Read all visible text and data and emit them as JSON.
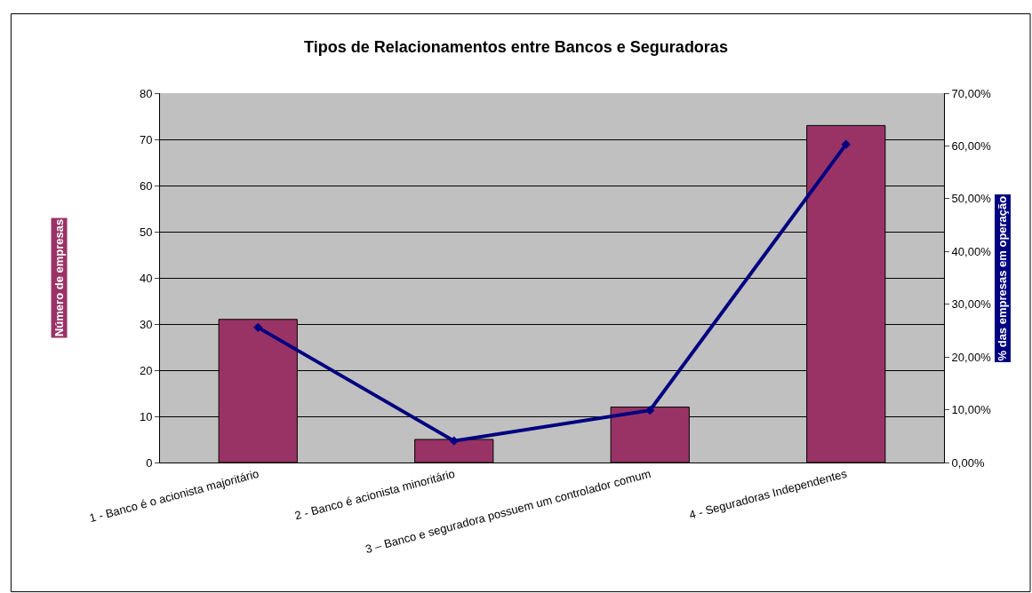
{
  "chart_data": {
    "type": "bar",
    "title": "Tipos de Relacionamentos entre Bancos e Seguradoras",
    "xlabel": null,
    "ylabel": "Número de empresas",
    "y2label": "% das empresas em operação",
    "categories": [
      "1 - Banco é o acionista majoritário",
      "2 - Banco é acionista minoritário",
      "3 – Banco e seguradora possuem um controlador comum",
      "4 - Seguradoras Independentes"
    ],
    "series": [
      {
        "color": "#993366",
        "values": [
          31,
          5,
          12,
          73
        ]
      },
      {
        "type": "line",
        "axis": "y2",
        "color": "#000080",
        "marker": "diamond",
        "values": [
          25.6,
          4.1,
          9.9,
          60.3
        ]
      }
    ],
    "ylim": [
      0,
      80
    ],
    "yticks": [
      0,
      10,
      20,
      30,
      40,
      50,
      60,
      70,
      80
    ],
    "y2lim": [
      0,
      70
    ],
    "y2ticks": [
      {
        "value": 0,
        "label": "0,00%"
      },
      {
        "value": 10,
        "label": "10,00%"
      },
      {
        "value": 20,
        "label": "20,00%"
      },
      {
        "value": 30,
        "label": "30,00%"
      },
      {
        "value": 40,
        "label": "40,00%"
      },
      {
        "value": 50,
        "label": "50,00%"
      },
      {
        "value": 60,
        "label": "60,00%"
      },
      {
        "value": 70,
        "label": "70,00%"
      }
    ],
    "grid": "y"
  }
}
